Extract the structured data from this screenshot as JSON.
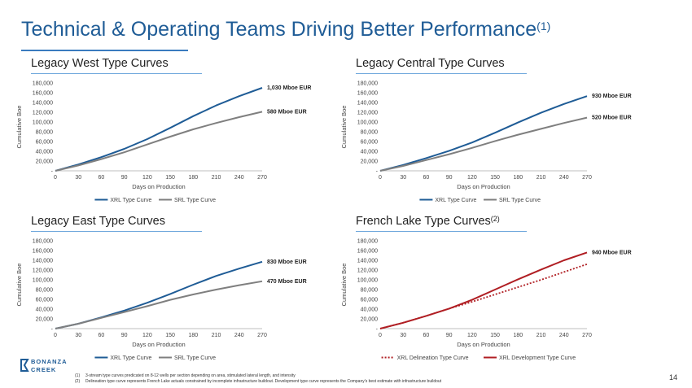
{
  "page": {
    "title": "Technical & Operating Teams Driving Better Performance",
    "title_sup": "(1)",
    "page_number": "14",
    "logo_text": [
      "BONANZA",
      "CREEK"
    ],
    "footnotes": [
      "(1)     3-stream type curves predicated on 8-12 wells per section depending on area, stimulated lateral length, and intensity",
      "(2)     Delineation type curve represents French Lake actuals constrained by incomplete infrastructure buildout. Development type curve represents the Company's best estimate with infrastructure buildout"
    ]
  },
  "colors": {
    "xrl": "#1f5c96",
    "srl": "#7f7f7f",
    "french_dev": "#b01e23",
    "french_delin": "#b01e23",
    "title": "#1f5c96"
  },
  "chart_data": [
    {
      "type": "line",
      "title": "Legacy West Type Curves",
      "title_sup": "",
      "xlabel": "Days on Production",
      "ylabel": "Cumulative Boe",
      "x_ticks": [
        "0",
        "30",
        "60",
        "90",
        "120",
        "150",
        "180",
        "210",
        "240",
        "270"
      ],
      "y_ticks": [
        "-",
        "20,000",
        "40,000",
        "60,000",
        "80,000",
        "100,000",
        "120,000",
        "140,000",
        "160,000",
        "180,000"
      ],
      "xlim": [
        0,
        270
      ],
      "ylim": [
        0,
        180000
      ],
      "x": [
        0,
        30,
        60,
        90,
        120,
        150,
        180,
        210,
        240,
        270
      ],
      "series": [
        {
          "name": "XRL Type Curve",
          "style": "solid",
          "color": "#1f5c96",
          "values": [
            0,
            13000,
            28000,
            45000,
            65000,
            88000,
            112000,
            134000,
            153000,
            170000
          ],
          "end_label": "1,030 Mboe EUR"
        },
        {
          "name": "SRL Type Curve",
          "style": "solid",
          "color": "#7f7f7f",
          "values": [
            0,
            11000,
            24000,
            38000,
            54000,
            70000,
            85000,
            98000,
            110000,
            121000
          ],
          "end_label": "580 Mboe EUR"
        }
      ]
    },
    {
      "type": "line",
      "title": "Legacy Central Type Curves",
      "title_sup": "",
      "xlabel": "Days on Production",
      "ylabel": "Cumulative Boe",
      "x_ticks": [
        "0",
        "30",
        "60",
        "90",
        "120",
        "150",
        "180",
        "210",
        "240",
        "270"
      ],
      "y_ticks": [
        "-",
        "20,000",
        "40,000",
        "60,000",
        "80,000",
        "100,000",
        "120,000",
        "140,000",
        "160,000",
        "180,000"
      ],
      "xlim": [
        0,
        270
      ],
      "ylim": [
        0,
        180000
      ],
      "x": [
        0,
        30,
        60,
        90,
        120,
        150,
        180,
        210,
        240,
        270
      ],
      "series": [
        {
          "name": "XRL Type Curve",
          "style": "solid",
          "color": "#1f5c96",
          "values": [
            0,
            12000,
            26000,
            41000,
            58000,
            78000,
            99000,
            119000,
            137000,
            153000
          ],
          "end_label": "930 Mboe EUR"
        },
        {
          "name": "SRL Type Curve",
          "style": "solid",
          "color": "#7f7f7f",
          "values": [
            0,
            10000,
            22000,
            34000,
            47000,
            61000,
            74000,
            86000,
            98000,
            109000
          ],
          "end_label": "520 Mboe EUR"
        }
      ]
    },
    {
      "type": "line",
      "title": "Legacy East Type Curves",
      "title_sup": "",
      "xlabel": "Days on Production",
      "ylabel": "Cumulative Boe",
      "x_ticks": [
        "0",
        "30",
        "60",
        "90",
        "120",
        "150",
        "180",
        "210",
        "240",
        "270"
      ],
      "y_ticks": [
        "-",
        "20,000",
        "40,000",
        "60,000",
        "80,000",
        "100,000",
        "120,000",
        "140,000",
        "160,000",
        "180,000"
      ],
      "xlim": [
        0,
        270
      ],
      "ylim": [
        0,
        180000
      ],
      "x": [
        0,
        30,
        60,
        90,
        120,
        150,
        180,
        210,
        240,
        270
      ],
      "series": [
        {
          "name": "XRL Type Curve",
          "style": "solid",
          "color": "#1f5c96",
          "values": [
            0,
            10000,
            23000,
            37000,
            53000,
            71000,
            90000,
            108000,
            123000,
            137000
          ],
          "end_label": "830 Mboe EUR"
        },
        {
          "name": "SRL Type Curve",
          "style": "solid",
          "color": "#7f7f7f",
          "values": [
            0,
            10000,
            22000,
            34000,
            46000,
            59000,
            70000,
            80000,
            89000,
            97000
          ],
          "end_label": "470 Mboe EUR"
        }
      ]
    },
    {
      "type": "line",
      "title": "French Lake Type Curves",
      "title_sup": "(2)",
      "xlabel": "Days on Production",
      "ylabel": "Cumulative Boe",
      "x_ticks": [
        "0",
        "30",
        "60",
        "90",
        "120",
        "150",
        "180",
        "210",
        "240",
        "270"
      ],
      "y_ticks": [
        "-",
        "20,000",
        "40,000",
        "60,000",
        "80,000",
        "100,000",
        "120,000",
        "140,000",
        "160,000",
        "180,000"
      ],
      "xlim": [
        0,
        270
      ],
      "ylim": [
        0,
        180000
      ],
      "x": [
        0,
        30,
        60,
        90,
        120,
        150,
        180,
        210,
        240,
        270
      ],
      "series": [
        {
          "name": "XRL Delineation Type Curve",
          "style": "dotted",
          "color": "#b01e23",
          "values": [
            0,
            12000,
            26000,
            41000,
            55000,
            70000,
            85000,
            100000,
            116000,
            132000
          ],
          "end_label": ""
        },
        {
          "name": "XRL Development Type Curve",
          "style": "solid",
          "color": "#b01e23",
          "values": [
            0,
            12000,
            26000,
            41000,
            59000,
            80000,
            101000,
            121000,
            140000,
            156000
          ],
          "end_label": "940 Mboe EUR"
        }
      ]
    }
  ]
}
